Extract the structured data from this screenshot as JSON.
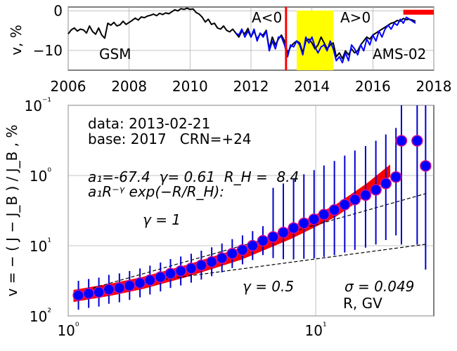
{
  "chart_data": [
    {
      "type": "line",
      "ylabel": "v, %",
      "xlim": [
        2006,
        2018
      ],
      "ylim": [
        -15,
        1
      ],
      "x_ticks": [
        "2006",
        "2008",
        "2010",
        "2012",
        "2014",
        "2016",
        "2018"
      ],
      "y_ticks": [
        "0",
        "−10"
      ],
      "grid": true,
      "colors": {
        "gsm": "#000000",
        "ams": "#0000ff",
        "marker": "#ff0000",
        "band": "#ffff00",
        "base": "#ff0000"
      },
      "labels": {
        "gsm": "GSM",
        "ams": "AMS-02",
        "a_neg": "A<0",
        "a_pos": "A>0"
      },
      "polarity_reversal_year": 2013.15,
      "highlight_band": [
        2013.5,
        2014.7
      ],
      "base_bar": [
        2017.0,
        2018.0
      ],
      "base_bar_y": -0.3,
      "series": [
        {
          "key": "gsm",
          "x": [
            2006.0,
            2006.1,
            2006.2,
            2006.3,
            2006.4,
            2006.5,
            2006.6,
            2006.7,
            2006.8,
            2006.9,
            2007.0,
            2007.1,
            2007.2,
            2007.3,
            2007.4,
            2007.5,
            2007.6,
            2007.7,
            2007.8,
            2007.9,
            2008.0,
            2008.1,
            2008.2,
            2008.3,
            2008.4,
            2008.5,
            2008.6,
            2008.7,
            2008.8,
            2008.9,
            2009.0,
            2009.1,
            2009.2,
            2009.3,
            2009.4,
            2009.5,
            2009.6,
            2009.7,
            2009.8,
            2009.9,
            2010.0,
            2010.1,
            2010.2,
            2010.3,
            2010.4,
            2010.5,
            2010.6,
            2010.7,
            2010.8,
            2010.9,
            2011.0,
            2011.1,
            2011.2,
            2011.3,
            2011.4,
            2011.5,
            2011.6,
            2011.7,
            2011.8,
            2011.9,
            2012.0,
            2012.1,
            2012.2,
            2012.3,
            2012.4,
            2012.5,
            2012.6,
            2012.7,
            2012.8,
            2012.9,
            2013.0,
            2013.1,
            2013.2,
            2013.3,
            2013.4,
            2013.5,
            2013.6,
            2013.7,
            2013.8,
            2013.9,
            2014.0,
            2014.1,
            2014.2,
            2014.3,
            2014.4,
            2014.5,
            2014.6,
            2014.7,
            2014.8,
            2014.9,
            2015.0,
            2015.1,
            2015.2,
            2015.3,
            2015.4,
            2015.5,
            2015.6,
            2015.7,
            2015.8,
            2015.9,
            2016.0,
            2016.1,
            2016.2,
            2016.3,
            2016.4,
            2016.5,
            2016.6,
            2016.7,
            2016.8,
            2016.9,
            2017.0,
            2017.1,
            2017.2,
            2017.3,
            2017.4
          ],
          "values": [
            -5.8,
            -4.8,
            -4.3,
            -5.1,
            -4.6,
            -4.8,
            -5.6,
            -3.8,
            -5.2,
            -5.9,
            -4.3,
            -6.1,
            -6.9,
            -3.1,
            -3.6,
            -2.9,
            -3.8,
            -3.5,
            -2.6,
            -3.4,
            -2.9,
            -2.4,
            -1.8,
            -2.3,
            -1.5,
            -1.7,
            -1.3,
            -1.1,
            -0.8,
            -1.2,
            -0.6,
            -0.9,
            -0.5,
            -0.7,
            -0.2,
            0.3,
            0.0,
            0.6,
            0.4,
            0.7,
            0.4,
            0.5,
            -0.4,
            -0.8,
            -1.6,
            -2.8,
            -2.1,
            -3.4,
            -3.1,
            -4.3,
            -4.6,
            -3.8,
            -4.9,
            -5.3,
            -4.6,
            -5.6,
            -6.6,
            -5.1,
            -5.8,
            -4.4,
            -6.6,
            -5.1,
            -7.1,
            -5.8,
            -6.1,
            -4.9,
            -9.6,
            -6.6,
            -8.6,
            -7.1,
            -6.1,
            -7.6,
            -10.6,
            -9.1,
            -8.2,
            -7.6,
            -8.1,
            -10.6,
            -7.6,
            -7.1,
            -8.1,
            -9.6,
            -8.6,
            -6.6,
            -8.1,
            -9.6,
            -8.6,
            -8.1,
            -11.6,
            -10.6,
            -12.1,
            -10.1,
            -11.1,
            -9.6,
            -10.6,
            -10.1,
            -8.6,
            -7.6,
            -6.6,
            -7.1,
            -6.1,
            -5.6,
            -5.1,
            -4.6,
            -4.1,
            -3.6,
            -3.1,
            -2.9,
            -2.4,
            -2.6,
            -1.9,
            -2.2,
            -2.1,
            -2.3,
            -2.6
          ]
        },
        {
          "key": "ams",
          "x": [
            2011.5,
            2011.6,
            2011.7,
            2011.8,
            2011.9,
            2012.0,
            2012.1,
            2012.2,
            2012.3,
            2012.4,
            2012.5,
            2012.6,
            2012.7,
            2012.8,
            2012.9,
            2013.0,
            2013.1,
            2013.2,
            2013.3,
            2013.4,
            2013.5,
            2013.6,
            2013.7,
            2013.8,
            2013.9,
            2014.0,
            2014.1,
            2014.2,
            2014.3,
            2014.4,
            2014.5,
            2014.6,
            2014.7,
            2014.8,
            2014.9,
            2015.0,
            2015.1,
            2015.2,
            2015.3,
            2015.4,
            2015.5,
            2015.6,
            2015.7,
            2015.8,
            2015.9,
            2016.0,
            2016.1,
            2016.2,
            2016.3,
            2016.4,
            2016.5,
            2016.6,
            2016.7,
            2016.8,
            2016.9,
            2017.0,
            2017.1,
            2017.2,
            2017.3,
            2017.4
          ],
          "values": [
            -5.6,
            -6.1,
            -4.6,
            -6.6,
            -5.1,
            -6.6,
            -4.6,
            -7.6,
            -5.6,
            -6.6,
            -5.1,
            -10.1,
            -7.6,
            -9.6,
            -6.6,
            -6.6,
            -8.6,
            -11.6,
            -8.6,
            -9.1,
            -7.6,
            -8.6,
            -11.1,
            -6.6,
            -8.1,
            -6.6,
            -9.1,
            -10.6,
            -9.1,
            -8.6,
            -10.1,
            -7.6,
            -9.6,
            -12.6,
            -11.6,
            -13.1,
            -10.6,
            -12.6,
            -8.6,
            -9.6,
            -11.1,
            -8.6,
            -10.1,
            -7.1,
            -8.6,
            -6.1,
            -7.6,
            -5.1,
            -6.6,
            -4.6,
            -3.6,
            -4.6,
            -3.1,
            -3.6,
            -2.1,
            -3.1,
            -1.6,
            -2.1,
            -2.6,
            -3.1
          ]
        }
      ]
    },
    {
      "type": "scatter",
      "xlabel": "R, GV",
      "ylabel": "v = − ( J − J_B ) / J_B , %",
      "x_scale": "log",
      "y_scale": "log",
      "y_axis_inverted": true,
      "xlim": [
        1,
        30
      ],
      "ylim": [
        0.1,
        100
      ],
      "x_ticks": [
        1,
        10
      ],
      "x_tick_labels": [
        "10⁰",
        "10¹"
      ],
      "y_ticks": [
        0.1,
        1,
        10,
        100
      ],
      "y_tick_labels": [
        "10⁻¹",
        "10⁰",
        "10¹",
        "10²"
      ],
      "grid": true,
      "colors": {
        "marker_fill": "#0000ff",
        "marker_edge": "#d01090",
        "error_bar": "#0000cc",
        "fit_band": "#ff0000",
        "guide": "#000000"
      },
      "annotations": {
        "data_line": "data: 2013-02-21",
        "base_line": "base: 2017   CRN=+24",
        "fit_params": "a₁=-67.4  γ= 0.61  R_H =  8.4",
        "fit_formula": "a₁R⁻ᵞ exp(−R/R_H):",
        "gamma1": "γ = 1",
        "gamma05": "γ = 0.5",
        "sigma": "σ = 0.049"
      },
      "points": {
        "x": [
          1.1,
          1.21,
          1.33,
          1.46,
          1.61,
          1.77,
          1.95,
          2.14,
          2.36,
          2.59,
          2.85,
          3.14,
          3.45,
          3.8,
          4.18,
          4.6,
          5.06,
          5.56,
          6.12,
          6.73,
          7.4,
          8.14,
          8.96,
          9.85,
          10.8,
          11.9,
          13.1,
          14.4,
          15.9,
          17.5,
          19.2,
          21.1,
          22.2,
          25.7,
          27.8
        ],
        "y": [
          51,
          48,
          46,
          42,
          40,
          37,
          34,
          31,
          28,
          25,
          23,
          21,
          19,
          17,
          15,
          13,
          11.5,
          10,
          8.5,
          7.5,
          6.5,
          5.6,
          4.8,
          4.2,
          3.6,
          3.1,
          2.6,
          2.2,
          1.9,
          1.6,
          1.3,
          1.05,
          0.32,
          0.32,
          0.73
        ],
        "err": [
          0,
          0,
          0,
          0,
          0,
          0,
          0,
          0,
          0,
          0,
          0,
          0,
          0,
          0,
          0,
          0,
          0,
          0,
          0,
          0,
          0,
          0,
          0,
          0,
          0,
          0,
          0,
          0,
          0,
          0,
          0,
          0,
          1,
          1,
          1
        ]
      },
      "fit_band": {
        "x": [
          1.05,
          1.5,
          2,
          3,
          5,
          8,
          12,
          16,
          20
        ],
        "y": [
          52,
          42,
          34,
          23,
          13,
          6.5,
          3.2,
          1.6,
          0.85
        ],
        "half_width_factor": 1.22
      },
      "guide_gamma1": {
        "x": [
          1.2,
          28
        ],
        "y": [
          42,
          1.8
        ]
      },
      "guide_gamma05": {
        "x": [
          1.2,
          28
        ],
        "y": [
          42,
          9.5
        ]
      }
    }
  ]
}
